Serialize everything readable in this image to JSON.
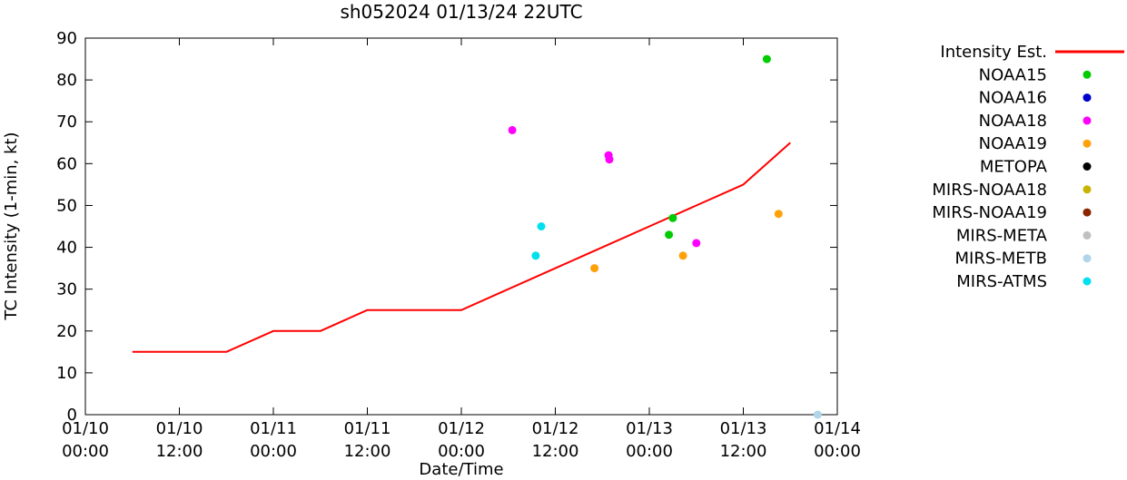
{
  "title": "sh052024 01/13/24 22UTC",
  "chart_data": {
    "type": "line+scatter",
    "title": "sh052024 01/13/24 22UTC",
    "xlabel": "Date/Time",
    "ylabel": "TC Intensity (1-min, kt)",
    "ylim": [
      0,
      90
    ],
    "ytick_step": 10,
    "grid": false,
    "legend_position": "right-outside",
    "x_unit": "hours since 01/10 00:00",
    "x_range_hours": [
      0,
      96
    ],
    "xticks": [
      {
        "hours": 0,
        "date": "01/10",
        "time": "00:00"
      },
      {
        "hours": 12,
        "date": "01/10",
        "time": "12:00"
      },
      {
        "hours": 24,
        "date": "01/11",
        "time": "00:00"
      },
      {
        "hours": 36,
        "date": "01/11",
        "time": "12:00"
      },
      {
        "hours": 48,
        "date": "01/12",
        "time": "00:00"
      },
      {
        "hours": 60,
        "date": "01/12",
        "time": "12:00"
      },
      {
        "hours": 72,
        "date": "01/13",
        "time": "00:00"
      },
      {
        "hours": 84,
        "date": "01/13",
        "time": "12:00"
      },
      {
        "hours": 96,
        "date": "01/14",
        "time": "00:00"
      }
    ],
    "line_series": [
      {
        "name": "Intensity Est.",
        "color": "#ff0000",
        "points_hours_kt": [
          [
            6,
            15
          ],
          [
            18,
            15
          ],
          [
            24,
            20
          ],
          [
            30,
            20
          ],
          [
            36,
            25
          ],
          [
            48,
            25
          ],
          [
            60,
            35
          ],
          [
            72,
            45
          ],
          [
            84,
            55
          ],
          [
            90,
            65
          ]
        ]
      }
    ],
    "scatter_series": [
      {
        "name": "NOAA15",
        "color": "#00cc00",
        "points_hours_kt": [
          [
            74.5,
            43
          ],
          [
            75,
            47
          ],
          [
            87,
            85
          ]
        ]
      },
      {
        "name": "NOAA16",
        "color": "#0000cc",
        "points_hours_kt": []
      },
      {
        "name": "NOAA18",
        "color": "#ff00ff",
        "points_hours_kt": [
          [
            54.5,
            68
          ],
          [
            66.8,
            62
          ],
          [
            66.9,
            61
          ],
          [
            78,
            41
          ]
        ]
      },
      {
        "name": "NOAA19",
        "color": "#ffa10a",
        "points_hours_kt": [
          [
            65,
            35
          ],
          [
            76.3,
            38
          ],
          [
            88.5,
            48
          ]
        ]
      },
      {
        "name": "METOPA",
        "color": "#000000",
        "points_hours_kt": []
      },
      {
        "name": "MIRS-NOAA18",
        "color": "#c8b400",
        "points_hours_kt": []
      },
      {
        "name": "MIRS-NOAA19",
        "color": "#8b2500",
        "points_hours_kt": []
      },
      {
        "name": "MIRS-META",
        "color": "#c0c0c0",
        "points_hours_kt": []
      },
      {
        "name": "MIRS-METB",
        "color": "#b0d4e8",
        "points_hours_kt": [
          [
            93.5,
            0
          ]
        ]
      },
      {
        "name": "MIRS-ATMS",
        "color": "#00e0ee",
        "points_hours_kt": [
          [
            57.5,
            38
          ],
          [
            58.2,
            45
          ]
        ]
      }
    ]
  }
}
